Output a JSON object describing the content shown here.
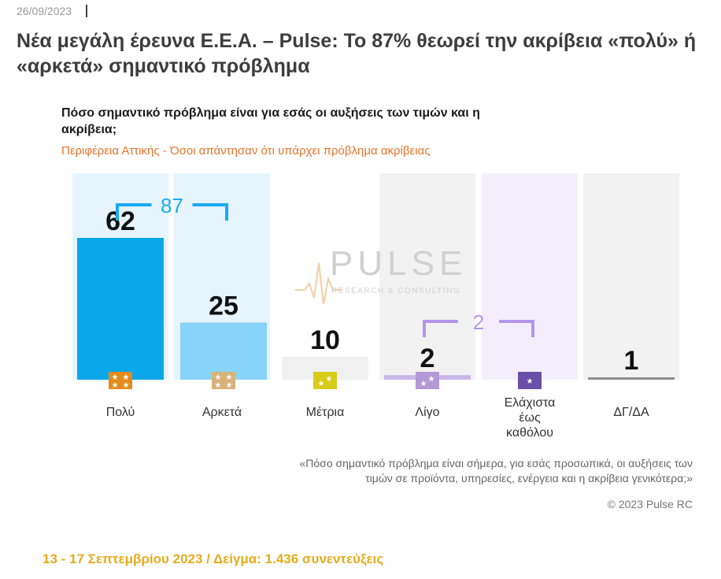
{
  "date": "26/09/2023",
  "headline": "Νέα μεγάλη έρευνα Ε.Ε.Α. – Pulse: Το 87% θεωρεί την ακρίβεια «πολύ» ή «αρκετά» σημαντικό πρόβλημα",
  "watermark": {
    "brand": "PULSE",
    "tagline": "RESEARCH & CONSULTING"
  },
  "footnote": "«Πόσο σημαντικό πρόβλημα είναι σήμερα, για εσάς προσωπικά, οι αυξήσεις των τιμών σε προϊόντα, υπηρεσίες, ενέργεια και η ακρίβεια γενικότερα;»",
  "copyright": "© 2023 Pulse RC",
  "footer": "13 - 17  Σεπτεμβρίου  2023  /  Δείγμα:  1.436 συνεντεύξεις",
  "chart_data": {
    "type": "bar",
    "title": "Πόσο σημαντικό πρόβλημα είναι για εσάς οι αυξήσεις των τιμών και η ακρίβεια;",
    "subtitle": "Περιφέρεια Αττικής - Όσοι απάντησαν ότι υπάρχει πρόβλημα ακρίβειας",
    "categories": [
      "Πολύ",
      "Αρκετά",
      "Μέτρια",
      "Λίγο",
      "Ελάχιστα έως καθόλου",
      "ΔΓ/ΔΑ"
    ],
    "values": [
      62,
      25,
      10,
      2,
      0,
      1
    ],
    "value_labels": [
      "62",
      "25",
      "10",
      "2",
      "",
      "1"
    ],
    "ylim": [
      0,
      100
    ],
    "colors": [
      "#0aa7ea",
      "#88d3f7",
      "#f0f0f0",
      "#c9b6e8",
      "#d6c6f0",
      "#8c8c8c"
    ],
    "column_bg": [
      "#e6f5fd",
      "#e6f5fd",
      "#ffffff",
      "#f2f2f2",
      "#f4eefc",
      "#f2f2f2"
    ],
    "icons": [
      "stars-4-orange-icon",
      "stars-4-tan-icon",
      "stars-2-yellow-icon",
      "stars-2-lilac-icon",
      "stars-1-purple-icon",
      ""
    ],
    "icon_colors": [
      "#e38b1c",
      "#d8b27a",
      "#d8cc1a",
      "#b39ad6",
      "#6a4fa8",
      ""
    ],
    "brackets": [
      {
        "label": "87",
        "from": 0,
        "to": 1,
        "color": "#1aaaf0"
      },
      {
        "label": "2",
        "from": 3,
        "to": 4,
        "color": "#b595ec"
      }
    ]
  }
}
